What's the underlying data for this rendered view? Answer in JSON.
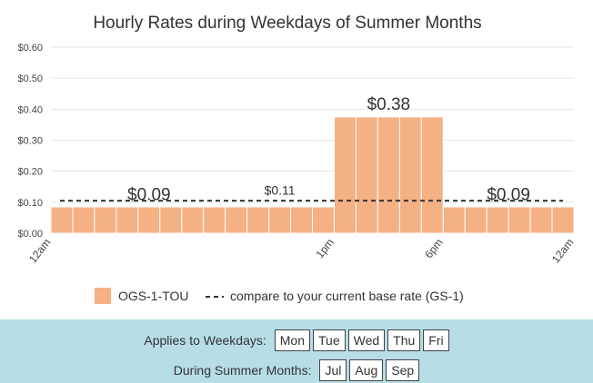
{
  "chart_data": {
    "type": "bar",
    "title": "Hourly Rates during Weekdays of Summer Months",
    "y_tick_labels": [
      "$0.00",
      "$0.10",
      "$0.20",
      "$0.30",
      "$0.40",
      "$0.50",
      "$0.60"
    ],
    "ylim": [
      0,
      0.6
    ],
    "x_tick_labels": [
      {
        "label": "12am",
        "at_hour": 0
      },
      {
        "label": "1pm",
        "at_hour": 13
      },
      {
        "label": "6pm",
        "at_hour": 18
      },
      {
        "label": "12am",
        "at_hour": 24
      }
    ],
    "x_hours": [
      0,
      1,
      2,
      3,
      4,
      5,
      6,
      7,
      8,
      9,
      10,
      11,
      12,
      13,
      14,
      15,
      16,
      17,
      18,
      19,
      20,
      21,
      22,
      23
    ],
    "series": [
      {
        "name": "OGS-1-TOU",
        "color": "#f4b183",
        "values": [
          0.085,
          0.085,
          0.085,
          0.085,
          0.085,
          0.085,
          0.085,
          0.085,
          0.085,
          0.085,
          0.085,
          0.085,
          0.085,
          0.375,
          0.375,
          0.375,
          0.375,
          0.375,
          0.085,
          0.085,
          0.085,
          0.085,
          0.085,
          0.085
        ]
      }
    ],
    "annotations": [
      {
        "text": "$0.09",
        "at_hour": 4.5,
        "y": 0.09,
        "size": "large"
      },
      {
        "text": "$0.11",
        "at_hour": 10.5,
        "y": 0.11,
        "size": "small"
      },
      {
        "text": "$0.38",
        "at_hour": 15.5,
        "y": 0.38,
        "size": "large"
      },
      {
        "text": "$0.09",
        "at_hour": 21,
        "y": 0.09,
        "size": "large"
      }
    ],
    "reference_line": {
      "name": "compare to your current base rate (GS-1)",
      "value": 0.105,
      "style": "dashed"
    },
    "legend": {
      "position": "bottom",
      "items": [
        {
          "label": "OGS-1-TOU",
          "kind": "swatch",
          "color": "#f4b183"
        },
        {
          "label": "compare to your current base rate (GS-1)",
          "kind": "dashed-line",
          "color": "#333333"
        }
      ]
    },
    "grid": true
  },
  "footer": {
    "weekdays_label": "Applies to Weekdays:",
    "weekdays": [
      "Mon",
      "Tue",
      "Wed",
      "Thu",
      "Fri"
    ],
    "months_label": "During Summer Months:",
    "months": [
      "Jul",
      "Aug",
      "Sep"
    ]
  },
  "colors": {
    "bar": "#f4b183",
    "footer_bg": "#b7dde7",
    "grid": "#e6e6e6"
  }
}
